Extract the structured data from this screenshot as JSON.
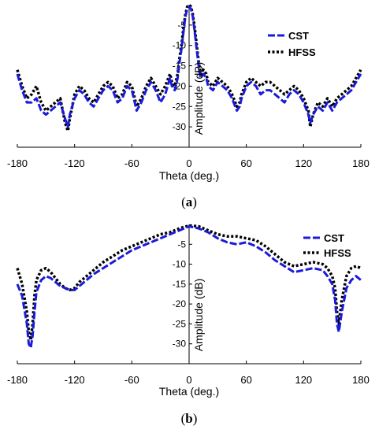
{
  "chart_data": [
    {
      "type": "line",
      "panel_label_prefix": "(",
      "panel_label_letter": "a",
      "panel_label_suffix": ")",
      "xlabel": "Theta (deg.)",
      "ylabel": "Amplitude (dB)",
      "xlim": [
        -180,
        180
      ],
      "ylim": [
        -35,
        0
      ],
      "xticks": [
        -180,
        -120,
        -60,
        0,
        60,
        120,
        180
      ],
      "yticks": [
        -5,
        -10,
        -15,
        -20,
        -25,
        -30
      ],
      "legend_position": "top-right",
      "series": [
        {
          "name": "CST",
          "color": "#1a1adb",
          "style": "dashed",
          "x": [
            -180,
            -175,
            -170,
            -165,
            -160,
            -155,
            -150,
            -145,
            -140,
            -135,
            -130,
            -127,
            -125,
            -120,
            -115,
            -110,
            -105,
            -100,
            -95,
            -90,
            -85,
            -80,
            -75,
            -70,
            -65,
            -60,
            -57,
            -55,
            -50,
            -45,
            -40,
            -35,
            -30,
            -25,
            -20,
            -18,
            -15,
            -12,
            -10,
            -8,
            -6,
            -4,
            -2,
            0,
            2,
            4,
            6,
            8,
            10,
            12,
            15,
            18,
            20,
            25,
            30,
            35,
            40,
            45,
            50,
            53,
            55,
            60,
            65,
            70,
            75,
            80,
            85,
            90,
            95,
            100,
            105,
            110,
            115,
            120,
            125,
            127,
            130,
            135,
            140,
            145,
            150,
            155,
            160,
            165,
            170,
            175,
            180
          ],
          "y": [
            -17,
            -21,
            -24,
            -24,
            -23,
            -26,
            -27,
            -26,
            -25,
            -24,
            -28,
            -30,
            -27,
            -23,
            -21,
            -22,
            -24,
            -25,
            -23,
            -21,
            -20,
            -21,
            -24,
            -23,
            -20,
            -21,
            -24,
            -26,
            -24,
            -21,
            -19,
            -21,
            -24,
            -22,
            -18,
            -20,
            -21,
            -18,
            -14,
            -11,
            -7,
            -3,
            -1,
            -0.5,
            -1,
            -3,
            -7,
            -11,
            -15,
            -18,
            -17,
            -18,
            -20,
            -21,
            -19,
            -20,
            -21,
            -23,
            -26,
            -25,
            -23,
            -20,
            -19,
            -20,
            -22,
            -21,
            -21,
            -22,
            -23,
            -24,
            -22,
            -21,
            -22,
            -24,
            -27,
            -29,
            -27,
            -25,
            -26,
            -24,
            -26,
            -24,
            -23,
            -22,
            -21,
            -19,
            -17
          ]
        },
        {
          "name": "HFSS",
          "color": "#000000",
          "style": "dotted",
          "x": [
            -180,
            -175,
            -170,
            -165,
            -160,
            -155,
            -150,
            -145,
            -140,
            -135,
            -130,
            -127,
            -125,
            -120,
            -115,
            -110,
            -105,
            -100,
            -95,
            -90,
            -85,
            -80,
            -75,
            -70,
            -65,
            -60,
            -57,
            -55,
            -50,
            -45,
            -40,
            -35,
            -30,
            -25,
            -20,
            -18,
            -15,
            -12,
            -10,
            -8,
            -6,
            -4,
            -2,
            0,
            2,
            4,
            6,
            8,
            10,
            12,
            15,
            18,
            20,
            25,
            30,
            35,
            40,
            45,
            50,
            53,
            55,
            60,
            65,
            70,
            75,
            80,
            85,
            90,
            95,
            100,
            105,
            110,
            115,
            120,
            125,
            127,
            130,
            135,
            140,
            145,
            150,
            155,
            160,
            165,
            170,
            175,
            180
          ],
          "y": [
            -16,
            -20,
            -23,
            -22,
            -20,
            -24,
            -26,
            -25,
            -24,
            -23,
            -29,
            -31,
            -28,
            -22,
            -20,
            -21,
            -23,
            -24,
            -22,
            -20,
            -19,
            -20,
            -23,
            -22,
            -19,
            -20,
            -23,
            -25,
            -23,
            -20,
            -18,
            -20,
            -22,
            -20,
            -17,
            -19,
            -20,
            -17,
            -13,
            -10,
            -6,
            -2.5,
            -0.5,
            0,
            -0.5,
            -2.5,
            -6,
            -10,
            -14,
            -17,
            -16,
            -17,
            -19,
            -20,
            -18,
            -19,
            -20,
            -22,
            -25,
            -24,
            -22,
            -19,
            -18,
            -19,
            -20,
            -19,
            -19,
            -20,
            -21,
            -22,
            -21,
            -20,
            -21,
            -23,
            -26,
            -30,
            -27,
            -24,
            -25,
            -23,
            -25,
            -23,
            -22,
            -21,
            -20,
            -18,
            -16
          ]
        }
      ]
    },
    {
      "type": "line",
      "panel_label_prefix": "(",
      "panel_label_letter": "b",
      "panel_label_suffix": ")",
      "xlabel": "Theta (deg.)",
      "ylabel": "Amplitude (dB)",
      "xlim": [
        -180,
        180
      ],
      "ylim": [
        -35,
        0
      ],
      "xticks": [
        -180,
        -120,
        -60,
        0,
        60,
        120,
        180
      ],
      "yticks": [
        -5,
        -10,
        -15,
        -20,
        -25,
        -30
      ],
      "legend_position": "top-right",
      "series": [
        {
          "name": "CST",
          "color": "#1a1adb",
          "style": "dashed",
          "x": [
            -180,
            -175,
            -170,
            -168,
            -166,
            -164,
            -162,
            -160,
            -155,
            -150,
            -145,
            -140,
            -135,
            -130,
            -125,
            -120,
            -115,
            -110,
            -100,
            -90,
            -80,
            -70,
            -60,
            -50,
            -40,
            -30,
            -20,
            -10,
            0,
            10,
            20,
            30,
            40,
            50,
            60,
            70,
            80,
            90,
            100,
            110,
            120,
            130,
            140,
            145,
            150,
            153,
            155,
            157,
            160,
            165,
            170,
            175,
            180
          ],
          "y": [
            -15,
            -18,
            -25,
            -30,
            -31,
            -28,
            -22,
            -17,
            -14,
            -13,
            -13.5,
            -14.5,
            -15.5,
            -16,
            -16.5,
            -16.5,
            -15.5,
            -14.5,
            -12.5,
            -11,
            -9.5,
            -8,
            -6.5,
            -5.5,
            -4.5,
            -3.5,
            -2.5,
            -1.5,
            -0.5,
            -1,
            -2,
            -3.5,
            -4.5,
            -5,
            -4.5,
            -5.5,
            -7,
            -9,
            -10.5,
            -12,
            -11.5,
            -11,
            -11.5,
            -13,
            -15,
            -19,
            -25,
            -27,
            -22,
            -16,
            -14,
            -13,
            -14
          ]
        },
        {
          "name": "HFSS",
          "color": "#000000",
          "style": "dotted",
          "x": [
            -180,
            -175,
            -170,
            -168,
            -166,
            -164,
            -162,
            -160,
            -155,
            -150,
            -145,
            -140,
            -135,
            -130,
            -125,
            -120,
            -115,
            -110,
            -100,
            -90,
            -80,
            -70,
            -60,
            -50,
            -40,
            -30,
            -20,
            -10,
            0,
            10,
            20,
            30,
            40,
            50,
            60,
            70,
            80,
            90,
            100,
            110,
            120,
            130,
            140,
            145,
            150,
            153,
            155,
            157,
            160,
            165,
            170,
            175,
            180
          ],
          "y": [
            -11,
            -15,
            -22,
            -27,
            -29,
            -25,
            -18,
            -14,
            -11.5,
            -11,
            -12,
            -13.5,
            -15,
            -16,
            -16.5,
            -16,
            -14.5,
            -13.5,
            -11.5,
            -9.5,
            -8,
            -6.5,
            -5.5,
            -4.5,
            -3.5,
            -2.5,
            -2,
            -1,
            -0.3,
            -0.5,
            -1.5,
            -2.5,
            -3,
            -3,
            -3.5,
            -4,
            -5.5,
            -7.5,
            -9.5,
            -10.5,
            -10,
            -9.5,
            -10,
            -11,
            -13,
            -16,
            -22,
            -25,
            -19,
            -13,
            -11,
            -10.5,
            -11
          ]
        }
      ]
    }
  ]
}
